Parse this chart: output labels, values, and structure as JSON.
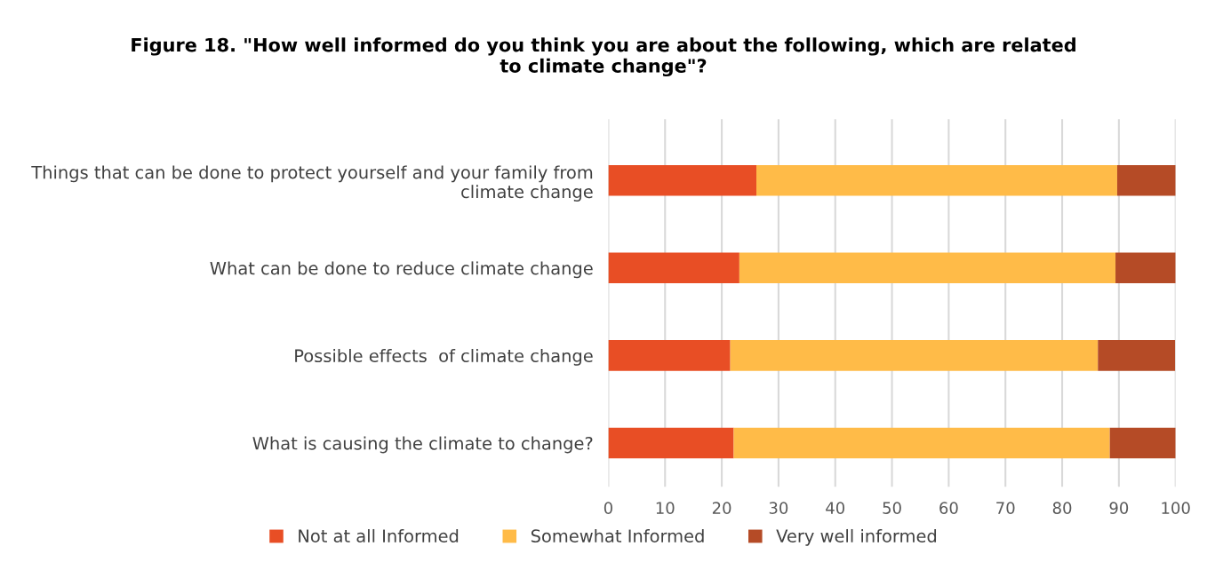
{
  "chart_data": {
    "type": "bar",
    "orientation": "horizontal",
    "stacked": true,
    "title": "Figure 18. \"How well informed do you think you are about the following, which are related\nto climate change\"?",
    "categories": [
      "Things that can be done to protect yourself and your family from\nclimate change",
      "What can be done to reduce climate change",
      "Possible effects  of climate change",
      "What is causing the climate to change?"
    ],
    "series": [
      {
        "name": "Not at all Informed",
        "color": "#e84e25",
        "values": [
          26.1,
          23.1,
          21.5,
          22.1
        ]
      },
      {
        "name": "Somewhat Informed",
        "color": "#ffbb48",
        "values": [
          63.6,
          66.3,
          64.8,
          66.3
        ]
      },
      {
        "name": "Very well informed",
        "color": "#b54b26",
        "values": [
          10.3,
          10.6,
          13.6,
          11.6
        ]
      }
    ],
    "xlim": [
      0,
      100
    ],
    "xticks": [
      0,
      10,
      20,
      30,
      40,
      50,
      60,
      70,
      80,
      90,
      100
    ],
    "grid": "x",
    "legend": "bottom"
  }
}
